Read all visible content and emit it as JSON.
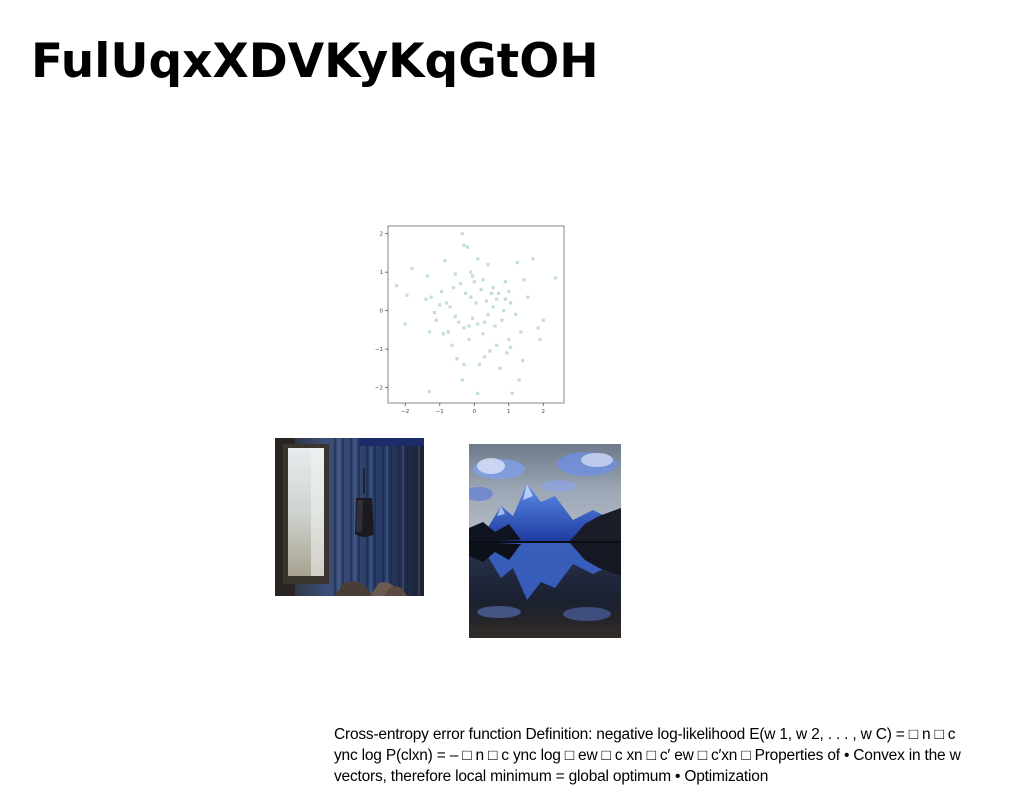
{
  "slide": {
    "title": "FulUqxXDVKyKqGtOH",
    "body_text": "Cross-entropy error function Definition: negative log-likelihood E(w 1, w 2, . . . , w C) = □ n □ c ync log P(clxn) = – □ n □ c ync log □ ew □ c xn □ c′ ew □ c′xn □ Properties of • Convex in the w vectors, therefore local minimum = global optimum • Optimization"
  },
  "figures": {
    "room_photo_icon": "interior-photo",
    "mountain_photo_icon": "mountain-lake-photo"
  },
  "chart_data": {
    "type": "scatter",
    "title": "",
    "xlabel": "",
    "ylabel": "",
    "xlim": [
      -2.5,
      2.6
    ],
    "ylim": [
      -2.4,
      2.2
    ],
    "x_ticks": [
      "−2",
      "−1",
      "0",
      "1",
      "2"
    ],
    "y_ticks": [
      "−2",
      "−1",
      "0",
      "1",
      "2"
    ],
    "x_tick_values": [
      -2,
      -1,
      0,
      1,
      2
    ],
    "y_tick_values": [
      -2,
      -1,
      0,
      1,
      2
    ],
    "grid": false,
    "marker_color": "#b8d8cf",
    "series": [
      {
        "points": [
          [
            -0.35,
            2.0
          ],
          [
            -0.3,
            1.7
          ],
          [
            -0.2,
            1.65
          ],
          [
            -0.1,
            1.0
          ],
          [
            -0.05,
            0.9
          ],
          [
            0.1,
            1.35
          ],
          [
            0.4,
            1.2
          ],
          [
            0.25,
            0.8
          ],
          [
            0.55,
            0.6
          ],
          [
            0.7,
            0.45
          ],
          [
            0.9,
            0.3
          ],
          [
            1.0,
            0.5
          ],
          [
            1.25,
            1.25
          ],
          [
            1.05,
            0.2
          ],
          [
            0.85,
            0.0
          ],
          [
            0.8,
            -0.25
          ],
          [
            0.6,
            -0.4
          ],
          [
            0.4,
            -0.1
          ],
          [
            0.3,
            -0.3
          ],
          [
            0.1,
            -0.35
          ],
          [
            -0.05,
            -0.2
          ],
          [
            -0.15,
            -0.4
          ],
          [
            -0.3,
            -0.45
          ],
          [
            -0.45,
            -0.3
          ],
          [
            -0.55,
            -0.15
          ],
          [
            -0.7,
            0.1
          ],
          [
            -0.8,
            0.2
          ],
          [
            -1.0,
            0.15
          ],
          [
            -1.1,
            -0.25
          ],
          [
            -1.25,
            0.35
          ],
          [
            -1.4,
            0.3
          ],
          [
            -1.35,
            0.9
          ],
          [
            -1.8,
            1.1
          ],
          [
            -2.25,
            0.65
          ],
          [
            -1.95,
            0.4
          ],
          [
            -2.0,
            -0.35
          ],
          [
            -1.3,
            -0.55
          ],
          [
            -0.9,
            -0.6
          ],
          [
            -0.75,
            -0.55
          ],
          [
            -0.95,
            0.5
          ],
          [
            -0.6,
            0.6
          ],
          [
            -0.4,
            0.7
          ],
          [
            -0.25,
            0.45
          ],
          [
            -0.1,
            0.35
          ],
          [
            0.05,
            0.2
          ],
          [
            0.2,
            0.55
          ],
          [
            0.35,
            0.25
          ],
          [
            0.55,
            0.1
          ],
          [
            1.2,
            -0.1
          ],
          [
            1.35,
            -0.55
          ],
          [
            1.0,
            -0.75
          ],
          [
            1.05,
            -0.95
          ],
          [
            0.95,
            -1.1
          ],
          [
            0.65,
            -0.9
          ],
          [
            0.45,
            -1.05
          ],
          [
            0.3,
            -1.2
          ],
          [
            0.15,
            -1.4
          ],
          [
            -0.3,
            -1.4
          ],
          [
            -0.35,
            -1.8
          ],
          [
            -0.5,
            -1.25
          ],
          [
            0.1,
            -2.15
          ],
          [
            -1.3,
            -2.1
          ],
          [
            1.1,
            -2.15
          ],
          [
            1.3,
            -1.8
          ],
          [
            1.4,
            -1.3
          ],
          [
            1.9,
            -0.75
          ],
          [
            2.0,
            -0.25
          ],
          [
            2.35,
            0.85
          ],
          [
            1.7,
            1.35
          ],
          [
            1.55,
            0.35
          ],
          [
            1.85,
            -0.45
          ],
          [
            0.5,
            0.45
          ],
          [
            0.0,
            0.75
          ],
          [
            -0.55,
            0.95
          ],
          [
            -0.85,
            1.3
          ],
          [
            0.25,
            -0.6
          ],
          [
            0.65,
            0.3
          ],
          [
            -1.15,
            -0.05
          ],
          [
            0.75,
            -1.5
          ],
          [
            1.45,
            0.8
          ],
          [
            -0.15,
            -0.75
          ],
          [
            0.9,
            0.75
          ],
          [
            -0.65,
            -0.9
          ]
        ]
      }
    ]
  }
}
